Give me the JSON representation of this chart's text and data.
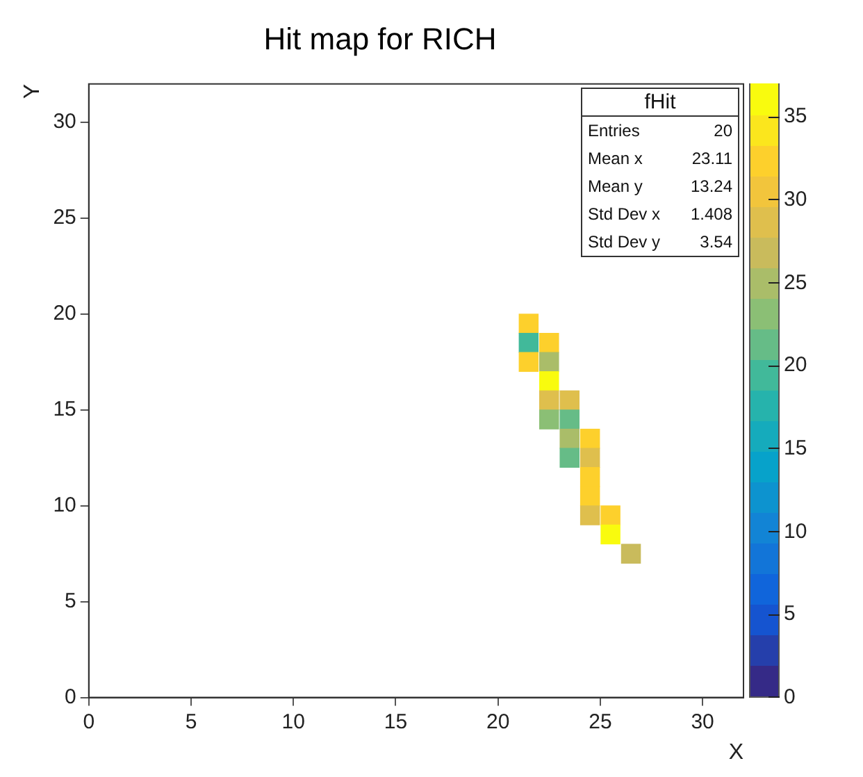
{
  "chart_data": {
    "type": "heatmap",
    "title": "Hit map for RICH",
    "xlabel": "X",
    "ylabel": "Y",
    "x": [
      21.5,
      22.5,
      23.5,
      24.5,
      25.5,
      26.5
    ],
    "y": [
      19.5,
      18.5,
      17.5,
      16.5,
      15.5,
      14.5,
      13.5,
      12.5,
      11.5,
      10.5,
      9.5,
      8.5,
      7.5
    ],
    "cells": [
      [
        33,
        null,
        null,
        null,
        null,
        null
      ],
      [
        19,
        32,
        null,
        null,
        null,
        null
      ],
      [
        33,
        25,
        null,
        null,
        null,
        null
      ],
      [
        null,
        36,
        null,
        null,
        null,
        null
      ],
      [
        null,
        28,
        28,
        null,
        null,
        null
      ],
      [
        null,
        23,
        21,
        null,
        null,
        null
      ],
      [
        null,
        null,
        25,
        32,
        null,
        null
      ],
      [
        null,
        null,
        21,
        28,
        null,
        null
      ],
      [
        null,
        null,
        null,
        33,
        null,
        null
      ],
      [
        null,
        null,
        null,
        33,
        null,
        null
      ],
      [
        null,
        null,
        null,
        28,
        32,
        null
      ],
      [
        null,
        null,
        null,
        null,
        37,
        null
      ],
      [
        null,
        null,
        null,
        null,
        null,
        27
      ]
    ],
    "xlim": [
      0,
      32
    ],
    "ylim": [
      0,
      32
    ],
    "xticks": [
      0,
      5,
      10,
      15,
      20,
      25,
      30
    ],
    "yticks": [
      0,
      5,
      10,
      15,
      20,
      25,
      30
    ],
    "clim": [
      0,
      37
    ],
    "cticks": [
      0,
      5,
      10,
      15,
      20,
      25,
      30,
      35
    ],
    "grid": false,
    "annotations": [
      "fHit",
      "Entries",
      "20",
      "Mean x",
      "23.11",
      "Mean y",
      "13.24",
      "Std Dev x",
      "1.408",
      "Std Dev y",
      "3.54"
    ]
  }
}
